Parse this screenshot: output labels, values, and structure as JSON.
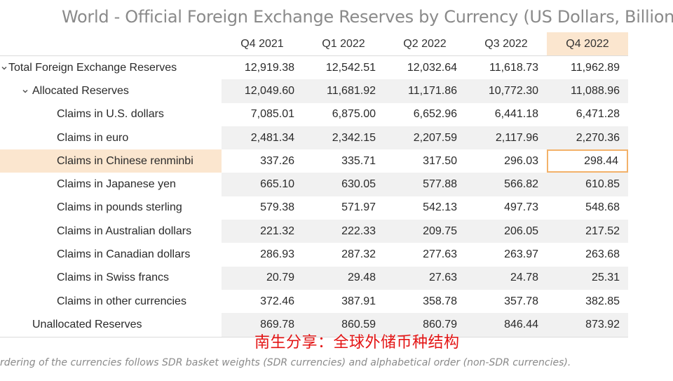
{
  "title": "World - Official Foreign Exchange Reserves by Currency (US Dollars, Billions)",
  "columns": [
    "Q4 2021",
    "Q1 2022",
    "Q2 2022",
    "Q3 2022",
    "Q4 2022"
  ],
  "selected_column": "Q4 2022",
  "rows": [
    {
      "label": "Total Foreign Exchange Reserves",
      "values": [
        "12,919.38",
        "12,542.51",
        "12,032.64",
        "11,618.73",
        "11,962.89"
      ]
    },
    {
      "label": "Allocated Reserves",
      "values": [
        "12,049.60",
        "11,681.92",
        "11,171.86",
        "10,772.30",
        "11,088.96"
      ]
    },
    {
      "label": "Claims in U.S. dollars",
      "values": [
        "7,085.01",
        "6,875.00",
        "6,652.96",
        "6,441.18",
        "6,471.28"
      ]
    },
    {
      "label": "Claims in euro",
      "values": [
        "2,481.34",
        "2,342.15",
        "2,207.59",
        "2,117.96",
        "2,270.36"
      ]
    },
    {
      "label": "Claims in Chinese renminbi",
      "values": [
        "337.26",
        "335.71",
        "317.50",
        "296.03",
        "298.44"
      ]
    },
    {
      "label": "Claims in Japanese yen",
      "values": [
        "665.10",
        "630.05",
        "577.88",
        "566.82",
        "610.85"
      ]
    },
    {
      "label": "Claims in pounds sterling",
      "values": [
        "579.38",
        "571.97",
        "542.13",
        "497.73",
        "548.68"
      ]
    },
    {
      "label": "Claims in Australian dollars",
      "values": [
        "221.32",
        "222.33",
        "209.75",
        "206.05",
        "217.52"
      ]
    },
    {
      "label": "Claims in Canadian dollars",
      "values": [
        "286.93",
        "287.32",
        "277.63",
        "263.97",
        "263.68"
      ]
    },
    {
      "label": "Claims in Swiss francs",
      "values": [
        "20.79",
        "29.48",
        "27.63",
        "24.78",
        "25.31"
      ]
    },
    {
      "label": "Claims in other currencies",
      "values": [
        "372.46",
        "387.91",
        "358.78",
        "357.78",
        "382.85"
      ]
    },
    {
      "label": "Unallocated Reserves",
      "values": [
        "869.78",
        "860.59",
        "860.79",
        "846.44",
        "873.92"
      ]
    }
  ],
  "highlighted_row": "Claims in Chinese renminbi",
  "selected_cell": {
    "row": "Claims in Chinese renminbi",
    "column": "Q4 2022",
    "value": "298.44"
  },
  "icons": {
    "expand_toggle": "chevron-down-icon"
  },
  "watermark": "南生分享：全球外储币种结构",
  "footnote": "rdering of the currencies follows SDR basket weights (SDR currencies) and alphabetical order (non-SDR currencies).",
  "colors": {
    "title": "#8a8a8a",
    "highlight": "#fbe6cf",
    "selected_border": "#f3b26a",
    "stripe": "#f1f1f1",
    "watermark": "#e31414"
  }
}
